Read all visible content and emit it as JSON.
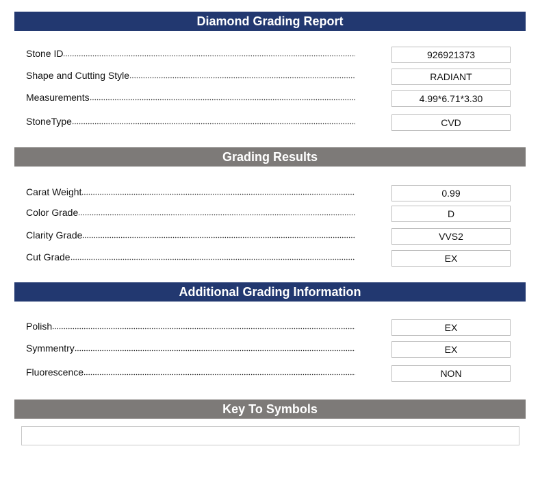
{
  "sections": [
    {
      "title": "Diamond Grading Report",
      "rows": [
        {
          "label": "Stone ID",
          "value": "926921373"
        },
        {
          "label": "Shape and Cutting Style",
          "value": "RADIANT"
        },
        {
          "label": "Measurements",
          "value": "4.99*6.71*3.30"
        },
        {
          "label": "StoneType",
          "value": "CVD"
        }
      ]
    },
    {
      "title": "Grading Results",
      "rows": [
        {
          "label": "Carat Weight",
          "value": "0.99"
        },
        {
          "label": "Color Grade",
          "value": "D"
        },
        {
          "label": "Clarity Grade",
          "value": "VVS2"
        },
        {
          "label": "Cut Grade",
          "value": "EX"
        }
      ]
    },
    {
      "title": "Additional Grading Information",
      "rows": [
        {
          "label": "Polish",
          "value": "EX"
        },
        {
          "label": "Symmentry",
          "value": "EX"
        },
        {
          "label": "Fluorescence",
          "value": "NON"
        }
      ]
    },
    {
      "title": "Key To Symbols"
    }
  ]
}
